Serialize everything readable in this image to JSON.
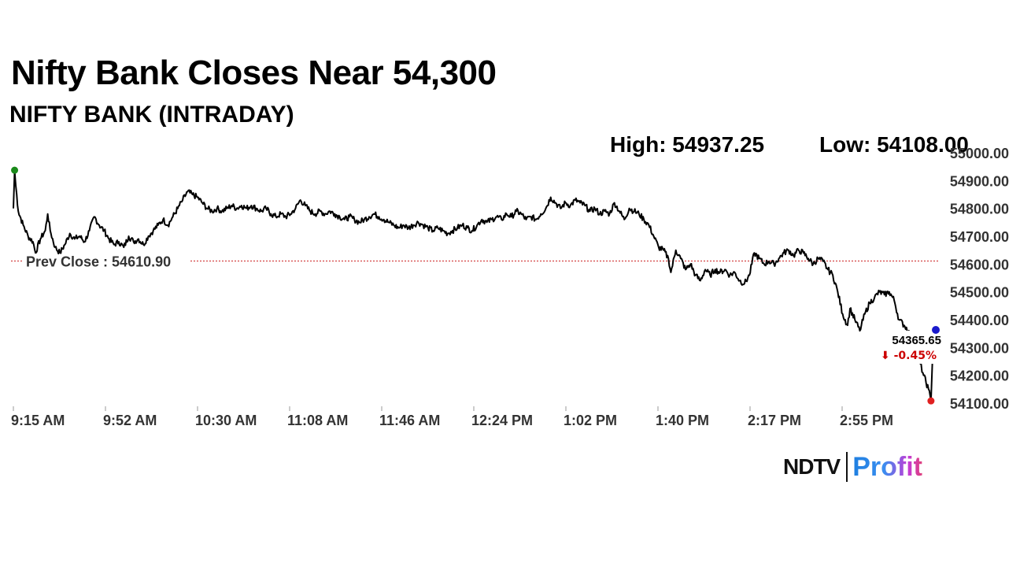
{
  "header": {
    "title": "Nifty Bank Closes Near 54,300",
    "subtitle": "NIFTY BANK (INTRADAY)"
  },
  "stats": {
    "high": "High: 54937.25",
    "low": "Low: 54108.00"
  },
  "branding": {
    "ndtv": "NDTV",
    "profit": "Profit"
  },
  "chart_data": {
    "type": "line",
    "title": "NIFTY BANK (INTRADAY)",
    "xlabel": "",
    "ylabel": "",
    "x_ticks": [
      "9:15 AM",
      "9:52 AM",
      "10:30 AM",
      "11:08 AM",
      "11:46 AM",
      "12:24 PM",
      "1:02 PM",
      "1:40 PM",
      "2:17 PM",
      "2:55 PM"
    ],
    "y_ticks": [
      "54100.00",
      "54200.00",
      "54300.00",
      "54400.00",
      "54500.00",
      "54600.00",
      "54700.00",
      "54800.00",
      "54900.00",
      "55000.00"
    ],
    "ylim": [
      54080,
      55000
    ],
    "x_range_minutes": [
      0,
      375
    ],
    "prev_close": 54610.9,
    "prev_close_label": "Prev Close : 54610.90",
    "last_value_label": "54365.65",
    "change_label": "⬇ -0.45%",
    "colors": {
      "line": "#000000",
      "prev_close": "#cc2222",
      "high_marker": "#1a8a1a",
      "low_marker": "#e02020",
      "last_marker": "#1a1acc",
      "change": "#cc0000"
    },
    "series": [
      {
        "name": "NIFTY BANK",
        "points": [
          [
            0,
            54800
          ],
          [
            0.5,
            54937.25
          ],
          [
            1,
            54880
          ],
          [
            2,
            54790
          ],
          [
            4,
            54740
          ],
          [
            6,
            54700
          ],
          [
            8,
            54680
          ],
          [
            9,
            54640
          ],
          [
            11,
            54690
          ],
          [
            13,
            54720
          ],
          [
            14,
            54780
          ],
          [
            15,
            54720
          ],
          [
            17,
            54660
          ],
          [
            19,
            54640
          ],
          [
            21,
            54670
          ],
          [
            23,
            54710
          ],
          [
            25,
            54690
          ],
          [
            27,
            54700
          ],
          [
            29,
            54680
          ],
          [
            31,
            54720
          ],
          [
            33,
            54770
          ],
          [
            35,
            54740
          ],
          [
            37,
            54720
          ],
          [
            39,
            54690
          ],
          [
            41,
            54670
          ],
          [
            43,
            54680
          ],
          [
            45,
            54660
          ],
          [
            47,
            54700
          ],
          [
            49,
            54680
          ],
          [
            51,
            54690
          ],
          [
            53,
            54670
          ],
          [
            55,
            54700
          ],
          [
            57,
            54720
          ],
          [
            59,
            54740
          ],
          [
            61,
            54760
          ],
          [
            63,
            54740
          ],
          [
            65,
            54770
          ],
          [
            67,
            54800
          ],
          [
            69,
            54830
          ],
          [
            71,
            54860
          ],
          [
            73,
            54850
          ],
          [
            75,
            54840
          ],
          [
            77,
            54820
          ],
          [
            79,
            54800
          ],
          [
            81,
            54790
          ],
          [
            83,
            54800
          ],
          [
            85,
            54790
          ],
          [
            87,
            54800
          ],
          [
            89,
            54810
          ],
          [
            91,
            54800
          ],
          [
            93,
            54810
          ],
          [
            95,
            54800
          ],
          [
            97,
            54810
          ],
          [
            99,
            54800
          ],
          [
            101,
            54790
          ],
          [
            103,
            54800
          ],
          [
            105,
            54780
          ],
          [
            107,
            54770
          ],
          [
            109,
            54780
          ],
          [
            111,
            54770
          ],
          [
            113,
            54780
          ],
          [
            115,
            54800
          ],
          [
            117,
            54830
          ],
          [
            119,
            54810
          ],
          [
            121,
            54790
          ],
          [
            123,
            54780
          ],
          [
            125,
            54790
          ],
          [
            127,
            54780
          ],
          [
            129,
            54790
          ],
          [
            131,
            54780
          ],
          [
            133,
            54770
          ],
          [
            135,
            54760
          ],
          [
            137,
            54770
          ],
          [
            139,
            54760
          ],
          [
            141,
            54750
          ],
          [
            143,
            54760
          ],
          [
            145,
            54770
          ],
          [
            147,
            54780
          ],
          [
            149,
            54770
          ],
          [
            151,
            54760
          ],
          [
            153,
            54750
          ],
          [
            155,
            54740
          ],
          [
            157,
            54730
          ],
          [
            159,
            54740
          ],
          [
            161,
            54730
          ],
          [
            163,
            54740
          ],
          [
            165,
            54750
          ],
          [
            167,
            54740
          ],
          [
            169,
            54730
          ],
          [
            171,
            54720
          ],
          [
            173,
            54730
          ],
          [
            175,
            54720
          ],
          [
            177,
            54710
          ],
          [
            179,
            54720
          ],
          [
            181,
            54730
          ],
          [
            183,
            54740
          ],
          [
            185,
            54730
          ],
          [
            187,
            54720
          ],
          [
            189,
            54740
          ],
          [
            191,
            54760
          ],
          [
            193,
            54750
          ],
          [
            195,
            54760
          ],
          [
            197,
            54770
          ],
          [
            199,
            54760
          ],
          [
            201,
            54780
          ],
          [
            203,
            54770
          ],
          [
            205,
            54790
          ],
          [
            207,
            54780
          ],
          [
            209,
            54760
          ],
          [
            211,
            54770
          ],
          [
            213,
            54760
          ],
          [
            215,
            54780
          ],
          [
            217,
            54800
          ],
          [
            219,
            54840
          ],
          [
            221,
            54820
          ],
          [
            223,
            54800
          ],
          [
            225,
            54820
          ],
          [
            227,
            54810
          ],
          [
            229,
            54830
          ],
          [
            231,
            54820
          ],
          [
            233,
            54810
          ],
          [
            235,
            54790
          ],
          [
            237,
            54800
          ],
          [
            239,
            54780
          ],
          [
            241,
            54790
          ],
          [
            243,
            54780
          ],
          [
            245,
            54820
          ],
          [
            247,
            54790
          ],
          [
            249,
            54760
          ],
          [
            251,
            54800
          ],
          [
            253,
            54790
          ],
          [
            255,
            54780
          ],
          [
            257,
            54760
          ],
          [
            259,
            54740
          ],
          [
            261,
            54700
          ],
          [
            263,
            54660
          ],
          [
            265,
            54650
          ],
          [
            267,
            54620
          ],
          [
            268,
            54570
          ],
          [
            270,
            54650
          ],
          [
            272,
            54620
          ],
          [
            274,
            54580
          ],
          [
            276,
            54600
          ],
          [
            278,
            54560
          ],
          [
            280,
            54540
          ],
          [
            282,
            54580
          ],
          [
            284,
            54560
          ],
          [
            286,
            54580
          ],
          [
            288,
            54570
          ],
          [
            290,
            54580
          ],
          [
            292,
            54560
          ],
          [
            294,
            54570
          ],
          [
            296,
            54540
          ],
          [
            298,
            54530
          ],
          [
            300,
            54560
          ],
          [
            302,
            54640
          ],
          [
            304,
            54620
          ],
          [
            306,
            54600
          ],
          [
            308,
            54610
          ],
          [
            310,
            54600
          ],
          [
            312,
            54620
          ],
          [
            314,
            54640
          ],
          [
            316,
            54650
          ],
          [
            318,
            54630
          ],
          [
            320,
            54650
          ],
          [
            322,
            54640
          ],
          [
            324,
            54620
          ],
          [
            326,
            54600
          ],
          [
            328,
            54620
          ],
          [
            330,
            54610
          ],
          [
            332,
            54580
          ],
          [
            334,
            54560
          ],
          [
            336,
            54500
          ],
          [
            338,
            54420
          ],
          [
            340,
            54380
          ],
          [
            341,
            54440
          ],
          [
            343,
            54400
          ],
          [
            345,
            54360
          ],
          [
            347,
            54420
          ],
          [
            349,
            54460
          ],
          [
            351,
            54480
          ],
          [
            353,
            54500
          ],
          [
            355,
            54490
          ],
          [
            357,
            54500
          ],
          [
            359,
            54470
          ],
          [
            361,
            54400
          ],
          [
            363,
            54380
          ],
          [
            365,
            54360
          ],
          [
            367,
            54300
          ],
          [
            369,
            54260
          ],
          [
            371,
            54200
          ],
          [
            373,
            54150
          ],
          [
            374,
            54108
          ],
          [
            375,
            54365.65
          ]
        ]
      }
    ]
  }
}
